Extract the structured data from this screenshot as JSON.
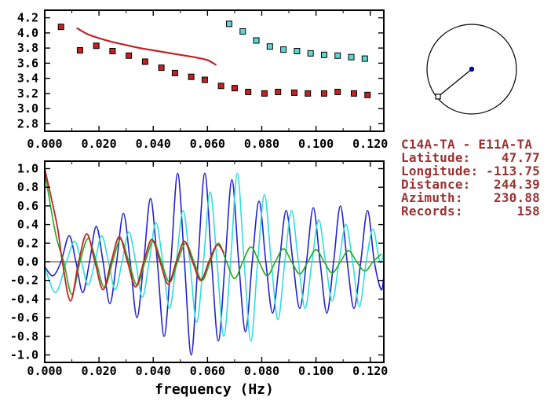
{
  "figure": {
    "background": "#ffffff"
  },
  "info_panel": {
    "text_color": "#993333",
    "title": "C14A-TA - E11A-TA",
    "lines": [
      "Latitude:    47.77",
      "Longitude: -113.75",
      "Distance:   244.39",
      "Azimuth:    230.88",
      "Records:       158"
    ]
  },
  "azimuth_dial": {
    "azimuth_deg": 230.88,
    "center_dot_color": "#000099",
    "marker": "open-square",
    "circle_color": "#000000"
  },
  "colors": {
    "red": "#c22222",
    "cyan_marker": "#5fd6d6",
    "blue": "#2222cc",
    "cyan_line": "#2fdede",
    "green": "#22aa22"
  },
  "chart_data": [
    {
      "id": "dispersion",
      "type": "scatter",
      "title": "",
      "xlabel": "",
      "ylabel": "",
      "xlim": [
        0,
        0.125
      ],
      "ylim": [
        2.7,
        4.3
      ],
      "grid": false,
      "legend": "none",
      "xticks": [
        0.0,
        0.02,
        0.04,
        0.06,
        0.08,
        0.1,
        0.12
      ],
      "xtick_labels": [
        "0.000",
        "0.020",
        "0.040",
        "0.060",
        "0.080",
        "0.100",
        "0.120"
      ],
      "xminor": [
        0.01,
        0.03,
        0.05,
        0.07,
        0.09,
        0.11
      ],
      "yticks": [
        2.8,
        3.0,
        3.2,
        3.4,
        3.6,
        3.8,
        4.0,
        4.2
      ],
      "ytick_labels": [
        "2.8",
        "3.0",
        "3.2",
        "3.4",
        "3.6",
        "3.8",
        "4.0",
        "4.2"
      ],
      "zero_line": false,
      "series": [
        {
          "name": "red-reference-curve",
          "type": "line",
          "color": "#c22222",
          "width": 2.2,
          "points": [
            [
              0.012,
              4.06
            ],
            [
              0.016,
              3.98
            ],
            [
              0.02,
              3.93
            ],
            [
              0.025,
              3.88
            ],
            [
              0.03,
              3.84
            ],
            [
              0.035,
              3.8
            ],
            [
              0.04,
              3.77
            ],
            [
              0.045,
              3.74
            ],
            [
              0.05,
              3.71
            ],
            [
              0.055,
              3.68
            ],
            [
              0.06,
              3.64
            ],
            [
              0.063,
              3.58
            ]
          ]
        },
        {
          "name": "red-dispersion-points",
          "type": "scatter",
          "marker": "square",
          "color": "#c22222",
          "points": [
            [
              0.006,
              4.08
            ],
            [
              0.013,
              3.77
            ],
            [
              0.019,
              3.83
            ],
            [
              0.025,
              3.76
            ],
            [
              0.031,
              3.7
            ],
            [
              0.037,
              3.62
            ],
            [
              0.043,
              3.54
            ],
            [
              0.048,
              3.47
            ],
            [
              0.054,
              3.42
            ],
            [
              0.059,
              3.38
            ],
            [
              0.065,
              3.3
            ],
            [
              0.07,
              3.27
            ],
            [
              0.075,
              3.22
            ],
            [
              0.081,
              3.2
            ],
            [
              0.086,
              3.22
            ],
            [
              0.092,
              3.21
            ],
            [
              0.097,
              3.2
            ],
            [
              0.103,
              3.2
            ],
            [
              0.108,
              3.22
            ],
            [
              0.114,
              3.2
            ],
            [
              0.119,
              3.18
            ]
          ]
        },
        {
          "name": "cyan-dispersion-points",
          "type": "scatter",
          "marker": "square",
          "color": "#5fd6d6",
          "points": [
            [
              0.068,
              4.12
            ],
            [
              0.073,
              4.02
            ],
            [
              0.078,
              3.9
            ],
            [
              0.083,
              3.82
            ],
            [
              0.088,
              3.78
            ],
            [
              0.093,
              3.76
            ],
            [
              0.098,
              3.73
            ],
            [
              0.103,
              3.71
            ],
            [
              0.108,
              3.7
            ],
            [
              0.113,
              3.68
            ],
            [
              0.118,
              3.66
            ]
          ]
        }
      ]
    },
    {
      "id": "waveform",
      "type": "line",
      "title": "",
      "xlabel": "frequency (Hz)",
      "ylabel": "",
      "xlim": [
        0,
        0.125
      ],
      "ylim": [
        -1.08,
        1.08
      ],
      "grid": false,
      "legend": "none",
      "xticks": [
        0.0,
        0.02,
        0.04,
        0.06,
        0.08,
        0.1,
        0.12
      ],
      "xtick_labels": [
        "0.000",
        "0.020",
        "0.040",
        "0.060",
        "0.080",
        "0.100",
        "0.120"
      ],
      "xminor": [
        0.01,
        0.03,
        0.05,
        0.07,
        0.09,
        0.11
      ],
      "yticks": [
        1.0,
        0.8,
        0.6,
        0.4,
        0.2,
        0.0,
        -0.2,
        -0.4,
        -0.6,
        -0.8,
        -1.0
      ],
      "ytick_labels": [
        "1.0",
        "0.8",
        "0.6",
        "0.4",
        "0.2",
        "0.0",
        "-0.2",
        "-0.4",
        "-0.6",
        "-0.8",
        "-1.0"
      ],
      "zero_line": true,
      "series": [
        {
          "name": "blue-trace",
          "type": "line",
          "color": "#2222cc",
          "width": 1.6,
          "points": [
            [
              0.0,
              -0.05
            ],
            [
              0.003,
              -0.15
            ],
            [
              0.006,
              0.0
            ],
            [
              0.009,
              0.28
            ],
            [
              0.0115,
              0.0
            ],
            [
              0.014,
              -0.33
            ],
            [
              0.0165,
              0.0
            ],
            [
              0.019,
              0.38
            ],
            [
              0.0215,
              0.0
            ],
            [
              0.024,
              -0.45
            ],
            [
              0.0265,
              0.0
            ],
            [
              0.029,
              0.52
            ],
            [
              0.0315,
              0.0
            ],
            [
              0.034,
              -0.6
            ],
            [
              0.0365,
              0.0
            ],
            [
              0.039,
              0.68
            ],
            [
              0.0415,
              0.0
            ],
            [
              0.044,
              -0.8
            ],
            [
              0.0465,
              0.0
            ],
            [
              0.049,
              0.95
            ],
            [
              0.0515,
              0.0
            ],
            [
              0.054,
              -1.0
            ],
            [
              0.0565,
              0.0
            ],
            [
              0.059,
              0.95
            ],
            [
              0.0615,
              0.0
            ],
            [
              0.064,
              -0.85
            ],
            [
              0.0665,
              0.0
            ],
            [
              0.069,
              0.88
            ],
            [
              0.0715,
              0.0
            ],
            [
              0.074,
              -0.75
            ],
            [
              0.0765,
              0.0
            ],
            [
              0.079,
              0.65
            ],
            [
              0.0815,
              0.0
            ],
            [
              0.084,
              -0.55
            ],
            [
              0.0865,
              0.0
            ],
            [
              0.089,
              0.55
            ],
            [
              0.0915,
              0.0
            ],
            [
              0.094,
              -0.5
            ],
            [
              0.0965,
              0.0
            ],
            [
              0.099,
              0.58
            ],
            [
              0.1015,
              0.0
            ],
            [
              0.104,
              -0.55
            ],
            [
              0.1065,
              0.0
            ],
            [
              0.109,
              0.6
            ],
            [
              0.1115,
              0.0
            ],
            [
              0.114,
              -0.5
            ],
            [
              0.1165,
              0.0
            ],
            [
              0.119,
              0.55
            ],
            [
              0.1215,
              0.0
            ],
            [
              0.124,
              -0.3
            ],
            [
              0.125,
              -0.15
            ]
          ]
        },
        {
          "name": "cyan-trace",
          "type": "line",
          "color": "#2fdede",
          "width": 1.6,
          "points": [
            [
              0.0,
              -0.05
            ],
            [
              0.004,
              -0.33
            ],
            [
              0.008,
              0.0
            ],
            [
              0.011,
              0.22
            ],
            [
              0.0135,
              0.0
            ],
            [
              0.016,
              -0.25
            ],
            [
              0.0185,
              0.0
            ],
            [
              0.021,
              0.28
            ],
            [
              0.0235,
              0.0
            ],
            [
              0.026,
              -0.3
            ],
            [
              0.0285,
              0.0
            ],
            [
              0.031,
              0.32
            ],
            [
              0.0335,
              0.0
            ],
            [
              0.036,
              -0.38
            ],
            [
              0.0385,
              0.0
            ],
            [
              0.041,
              0.42
            ],
            [
              0.0435,
              0.0
            ],
            [
              0.046,
              -0.5
            ],
            [
              0.0485,
              0.0
            ],
            [
              0.051,
              0.55
            ],
            [
              0.0535,
              0.0
            ],
            [
              0.056,
              -0.65
            ],
            [
              0.0585,
              0.0
            ],
            [
              0.061,
              0.75
            ],
            [
              0.0635,
              0.0
            ],
            [
              0.066,
              -0.8
            ],
            [
              0.0685,
              0.0
            ],
            [
              0.071,
              0.95
            ],
            [
              0.0735,
              0.0
            ],
            [
              0.076,
              -0.85
            ],
            [
              0.0785,
              0.0
            ],
            [
              0.081,
              0.72
            ],
            [
              0.0835,
              0.0
            ],
            [
              0.086,
              -0.62
            ],
            [
              0.0885,
              0.0
            ],
            [
              0.091,
              0.55
            ],
            [
              0.0935,
              0.0
            ],
            [
              0.096,
              -0.5
            ],
            [
              0.0985,
              0.0
            ],
            [
              0.101,
              0.45
            ],
            [
              0.1035,
              0.0
            ],
            [
              0.106,
              -0.42
            ],
            [
              0.1085,
              0.0
            ],
            [
              0.111,
              0.4
            ],
            [
              0.1135,
              0.0
            ],
            [
              0.116,
              -0.48
            ],
            [
              0.1185,
              0.0
            ],
            [
              0.121,
              0.35
            ],
            [
              0.1235,
              0.0
            ],
            [
              0.125,
              0.1
            ]
          ]
        },
        {
          "name": "green-trace",
          "type": "line",
          "color": "#22aa22",
          "width": 1.6,
          "points": [
            [
              0.0,
              0.97
            ],
            [
              0.004,
              0.3
            ],
            [
              0.007,
              0.0
            ],
            [
              0.01,
              -0.35
            ],
            [
              0.013,
              0.0
            ],
            [
              0.016,
              0.25
            ],
            [
              0.019,
              0.0
            ],
            [
              0.022,
              -0.28
            ],
            [
              0.025,
              0.0
            ],
            [
              0.028,
              0.24
            ],
            [
              0.031,
              0.0
            ],
            [
              0.034,
              -0.25
            ],
            [
              0.037,
              0.0
            ],
            [
              0.04,
              0.22
            ],
            [
              0.043,
              0.0
            ],
            [
              0.046,
              -0.22
            ],
            [
              0.049,
              0.0
            ],
            [
              0.052,
              0.2
            ],
            [
              0.055,
              0.0
            ],
            [
              0.058,
              -0.2
            ],
            [
              0.061,
              0.0
            ],
            [
              0.064,
              0.2
            ],
            [
              0.067,
              0.0
            ],
            [
              0.07,
              -0.18
            ],
            [
              0.073,
              0.0
            ],
            [
              0.076,
              0.16
            ],
            [
              0.079,
              0.0
            ],
            [
              0.082,
              -0.15
            ],
            [
              0.085,
              0.0
            ],
            [
              0.088,
              0.14
            ],
            [
              0.091,
              0.0
            ],
            [
              0.094,
              -0.13
            ],
            [
              0.097,
              0.0
            ],
            [
              0.1,
              0.13
            ],
            [
              0.103,
              0.0
            ],
            [
              0.106,
              -0.12
            ],
            [
              0.109,
              0.0
            ],
            [
              0.112,
              0.12
            ],
            [
              0.115,
              0.0
            ],
            [
              0.118,
              -0.1
            ],
            [
              0.121,
              0.0
            ],
            [
              0.124,
              0.08
            ]
          ]
        },
        {
          "name": "red-trace",
          "type": "line",
          "color": "#c22222",
          "width": 1.8,
          "points": [
            [
              0.0,
              1.0
            ],
            [
              0.0045,
              0.4
            ],
            [
              0.0065,
              0.0
            ],
            [
              0.0095,
              -0.42
            ],
            [
              0.0125,
              0.0
            ],
            [
              0.0155,
              0.3
            ],
            [
              0.0185,
              0.0
            ],
            [
              0.0215,
              -0.3
            ],
            [
              0.0245,
              0.0
            ],
            [
              0.0275,
              0.27
            ],
            [
              0.0305,
              0.0
            ],
            [
              0.0335,
              -0.27
            ],
            [
              0.0365,
              0.0
            ],
            [
              0.0395,
              0.24
            ],
            [
              0.0425,
              0.0
            ],
            [
              0.0455,
              -0.24
            ],
            [
              0.0485,
              0.0
            ],
            [
              0.0515,
              0.22
            ],
            [
              0.0545,
              0.0
            ],
            [
              0.0575,
              -0.2
            ],
            [
              0.0605,
              0.0
            ],
            [
              0.0635,
              0.18
            ],
            [
              0.066,
              0.1
            ]
          ]
        }
      ]
    }
  ]
}
